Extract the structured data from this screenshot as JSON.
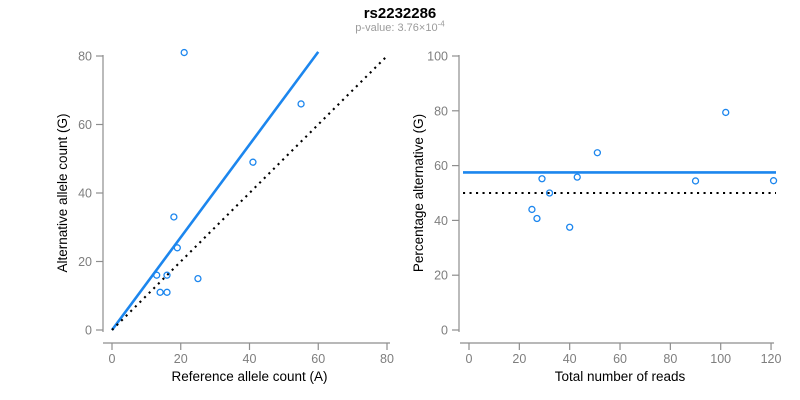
{
  "header": {
    "title": "rs2232286",
    "subtitle_prefix": "p-value: 3.76×10",
    "subtitle_exponent": "-4"
  },
  "colors": {
    "accent_blue": "#1C86EE",
    "line_black": "#000000",
    "axis_gray": "#8E8E8E",
    "tick_label_gray": "#7E7E7E",
    "axis_title_black": "#000000",
    "subtitle_gray": "#9B9B9B",
    "background": "#FFFFFF"
  },
  "chart_data": [
    {
      "type": "scatter",
      "panel": "left",
      "xlabel": "Reference allele count (A)",
      "ylabel": "Alternative allele count (G)",
      "xlim": [
        0,
        80
      ],
      "ylim": [
        0,
        80
      ],
      "xticks": [
        0,
        20,
        40,
        60,
        80
      ],
      "yticks": [
        0,
        20,
        40,
        60,
        80
      ],
      "grid": false,
      "legend": null,
      "marker": "open-circle",
      "points": [
        [
          21,
          81
        ],
        [
          55,
          66
        ],
        [
          41,
          49
        ],
        [
          18,
          33
        ],
        [
          19,
          24
        ],
        [
          13,
          16
        ],
        [
          16,
          16
        ],
        [
          25,
          15
        ],
        [
          14,
          11
        ],
        [
          16,
          11
        ]
      ],
      "lines": [
        {
          "id": "fit-line",
          "type": "segment",
          "style": "solid",
          "color": "accent_blue",
          "x1": 0,
          "y1": 0,
          "x2": 60,
          "y2": 81.2
        },
        {
          "id": "identity-line",
          "type": "segment",
          "style": "dotted",
          "color": "line_black",
          "x1": 0,
          "y1": 0,
          "x2": 80,
          "y2": 80
        }
      ]
    },
    {
      "type": "scatter",
      "panel": "right",
      "xlabel": "Total number of reads",
      "ylabel": "Percentage alternative (G)",
      "xlim": [
        0,
        120
      ],
      "ylim": [
        0,
        100
      ],
      "xticks": [
        0,
        20,
        40,
        60,
        80,
        100,
        120
      ],
      "yticks": [
        0,
        20,
        40,
        60,
        80,
        100
      ],
      "grid": false,
      "legend": null,
      "marker": "open-circle",
      "points": [
        [
          102,
          79.4
        ],
        [
          121,
          54.5
        ],
        [
          90,
          54.4
        ],
        [
          51,
          64.7
        ],
        [
          43,
          55.8
        ],
        [
          29,
          55.2
        ],
        [
          32,
          50.0
        ],
        [
          40,
          37.5
        ],
        [
          25,
          44.0
        ],
        [
          27,
          40.7
        ]
      ],
      "lines": [
        {
          "id": "mean-percentage-line",
          "type": "hline",
          "style": "solid",
          "color": "accent_blue",
          "y": 57.5
        },
        {
          "id": "fifty-percent-line",
          "type": "hline",
          "style": "dotted",
          "color": "line_black",
          "y": 50
        }
      ]
    }
  ]
}
